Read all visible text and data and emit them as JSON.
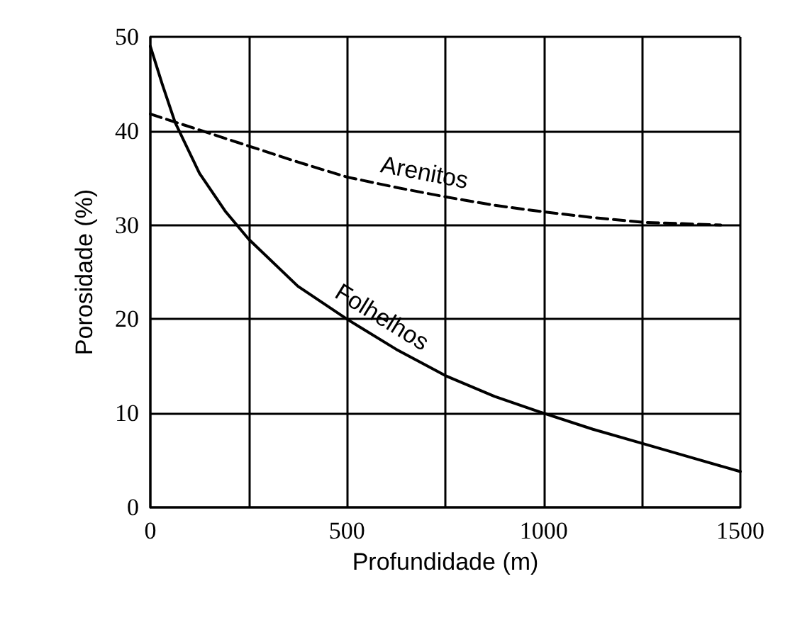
{
  "chart_data": {
    "type": "line",
    "xlabel": "Profundidade (m)",
    "ylabel": "Porosidade (%)",
    "xlim": [
      0,
      1500
    ],
    "xticks": [
      0,
      {
        "value": 250,
        "label": null
      },
      500,
      {
        "value": 750,
        "label": null
      },
      1000,
      {
        "value": 1250,
        "label": null
      },
      1500
    ],
    "ylim": [
      0,
      50
    ],
    "yticks": [
      0,
      10,
      20,
      30,
      40,
      50
    ],
    "grid": true,
    "legend": false,
    "marker": "none",
    "series": [
      {
        "name": "Arenitos",
        "color": "#000000",
        "line_style": "dashed",
        "x": [
          0,
          125,
          250,
          375,
          500,
          625,
          750,
          875,
          1000,
          1125,
          1250,
          1450
        ],
        "values": [
          41.8,
          40.1,
          38.4,
          36.7,
          35.1,
          34.0,
          33.0,
          32.1,
          31.4,
          30.8,
          30.3,
          30.0
        ]
      },
      {
        "name": "Folhelhos",
        "color": "#000000",
        "line_style": "solid",
        "x": [
          0,
          30,
          63,
          125,
          190,
          250,
          375,
          500,
          625,
          750,
          875,
          1000,
          1125,
          1250,
          1375,
          1500
        ],
        "values": [
          49,
          45,
          40.9,
          35.5,
          31.5,
          28.5,
          23.5,
          20,
          16.8,
          14,
          11.8,
          10,
          8.3,
          6.8,
          5.3,
          3.8
        ]
      }
    ]
  }
}
